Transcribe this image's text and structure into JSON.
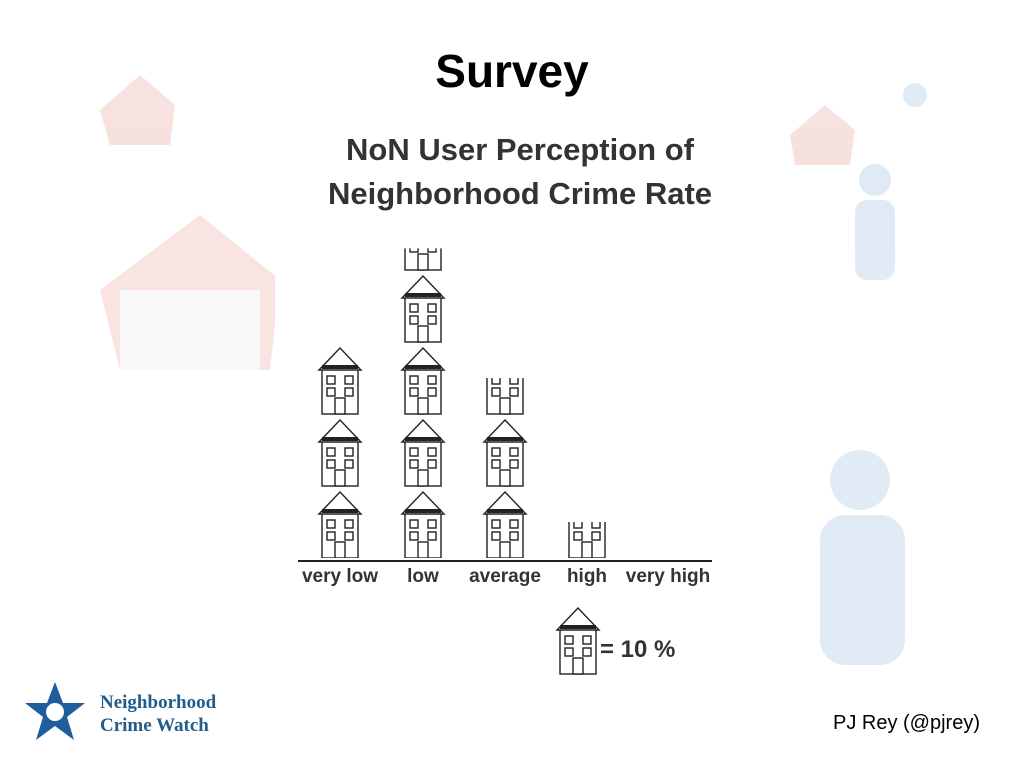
{
  "slide_title": "Survey",
  "footer": "PJ Rey (@pjrey)",
  "logo": [
    "Neighborhood",
    "Crime Watch"
  ],
  "chart_data": {
    "type": "pictograph",
    "title": "NoN User Perception of Neighborhood Crime Rate",
    "categories": [
      "very low",
      "low",
      "average",
      "high",
      "very high"
    ],
    "values": [
      30,
      43,
      25,
      5,
      0
    ],
    "unit": {
      "value": 10,
      "label": "= 10 %"
    },
    "color": "#222222"
  }
}
